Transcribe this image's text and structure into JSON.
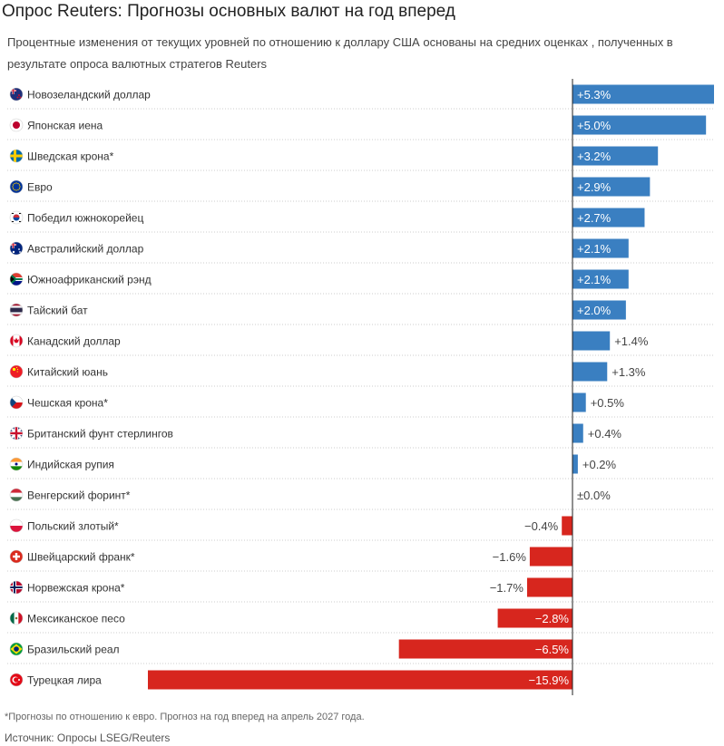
{
  "title": "Опрос Reuters: Прогнозы основных валют на год вперед",
  "subtitle": "Процентные изменения от текущих уровней по отношению к доллару США основаны на средних оценках , полученных в результате опроса валютных стратегов Reuters",
  "footnote": "*Прогнозы по отношению к евро. Прогноз на год вперед на апрель 2027 года.",
  "source": "Источник: Опросы LSEG/Reuters",
  "colors": {
    "positive": "#3a7fc1",
    "negative": "#d7261e",
    "divider": "#cccccc",
    "axis": "#222222"
  },
  "chart_data": {
    "type": "bar",
    "orientation": "horizontal",
    "categories": [
      "Новозеландский доллар",
      "Японская иена",
      "Шведская крона*",
      "Евро",
      "Победил южнокорейец",
      "Австралийский доллар",
      "Южноафриканский рэнд",
      "Тайский бат",
      "Канадский доллар",
      "Китайский юань",
      "Чешская крона*",
      "Британский фунт стерлингов",
      "Индийская рупия",
      "Венгерский форинт*",
      "Польский злотый*",
      "Швейцарский франк*",
      "Норвежская крона*",
      "Мексиканское песо",
      "Бразильский реал",
      "Турецкая лира"
    ],
    "values": [
      5.3,
      5.0,
      3.2,
      2.9,
      2.7,
      2.1,
      2.1,
      2.0,
      1.4,
      1.3,
      0.5,
      0.4,
      0.2,
      0.0,
      -0.4,
      -1.6,
      -1.7,
      -2.8,
      -6.5,
      -15.9
    ],
    "value_labels": [
      "+5.3%",
      "+5.0%",
      "+3.2%",
      "+2.9%",
      "+2.7%",
      "+2.1%",
      "+2.1%",
      "+2.0%",
      "+1.4%",
      "+1.3%",
      "+0.5%",
      "+0.4%",
      "+0.2%",
      "±0.0%",
      "−0.4%",
      "−1.6%",
      "−1.7%",
      "−2.8%",
      "−6.5%",
      "−15.9%"
    ],
    "flag_icons": [
      "new-zealand-flag-icon",
      "japan-flag-icon",
      "sweden-flag-icon",
      "eu-flag-icon",
      "south-korea-flag-icon",
      "australia-flag-icon",
      "south-africa-flag-icon",
      "thailand-flag-icon",
      "canada-flag-icon",
      "china-flag-icon",
      "czech-flag-icon",
      "uk-flag-icon",
      "india-flag-icon",
      "hungary-flag-icon",
      "poland-flag-icon",
      "switzerland-flag-icon",
      "norway-flag-icon",
      "mexico-flag-icon",
      "brazil-flag-icon",
      "turkey-flag-icon"
    ],
    "xlim": [
      -15.9,
      5.3
    ]
  }
}
